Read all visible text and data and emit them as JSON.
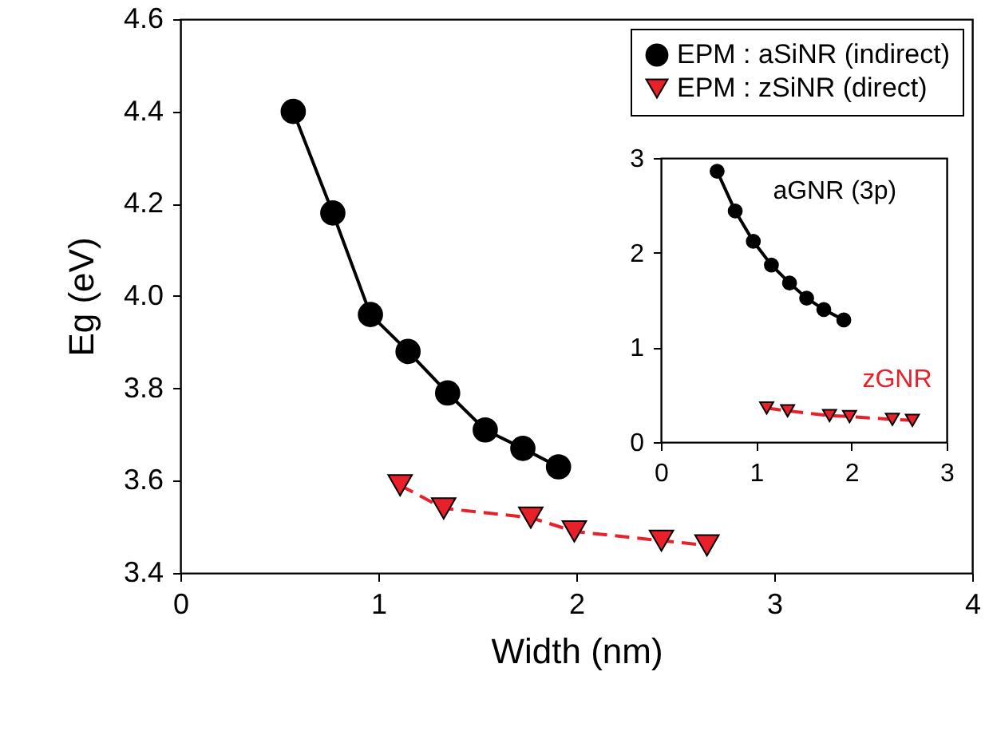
{
  "chart_data": [
    {
      "type": "line",
      "xlabel": "Width (nm)",
      "ylabel": "Eg (eV)",
      "xlim": [
        0,
        4
      ],
      "ylim": [
        3.4,
        4.6
      ],
      "xticks": [
        0,
        1,
        2,
        3,
        4
      ],
      "yticks": [
        3.4,
        3.6,
        3.8,
        {
          "value": 4,
          "label": "4.0"
        },
        4.2,
        4.4,
        4.6
      ],
      "grid": false,
      "legend": "top right",
      "series": [
        {
          "name": "EPM : aSiNR (indirect)",
          "color": "#000000",
          "marker": "circle",
          "line_style": "solid",
          "x": [
            0.57,
            0.77,
            0.96,
            1.15,
            1.35,
            1.54,
            1.73,
            1.91
          ],
          "values": [
            4.4,
            4.18,
            3.96,
            3.88,
            3.79,
            3.71,
            3.67,
            3.63
          ]
        },
        {
          "name": "EPM : zSiNR (direct)",
          "color": "#e8202a",
          "marker": "triangle",
          "line_style": "dashed",
          "x": [
            1.11,
            1.33,
            1.77,
            1.99,
            2.43,
            2.66
          ],
          "values": [
            3.59,
            3.54,
            3.52,
            3.49,
            3.47,
            3.46
          ]
        }
      ]
    },
    {
      "type": "line",
      "xlim": [
        0,
        3
      ],
      "ylim": [
        0,
        3
      ],
      "xticks": [
        0,
        1,
        2,
        3
      ],
      "yticks": [
        0,
        1,
        2,
        3
      ],
      "grid": false,
      "series": [
        {
          "name": "aGNR (3p)",
          "color": "#000000",
          "marker": "circle",
          "line_style": "solid",
          "x": [
            0.59,
            0.78,
            0.97,
            1.16,
            1.35,
            1.53,
            1.71,
            1.92
          ],
          "values": [
            2.86,
            2.44,
            2.12,
            1.87,
            1.68,
            1.52,
            1.4,
            1.29
          ]
        },
        {
          "name": "zGNR",
          "color": "#e8202a",
          "marker": "triangle",
          "line_style": "dashed",
          "x": [
            1.11,
            1.33,
            1.77,
            1.98,
            2.43,
            2.64
          ],
          "values": [
            0.36,
            0.33,
            0.28,
            0.27,
            0.24,
            0.23
          ]
        }
      ]
    }
  ]
}
